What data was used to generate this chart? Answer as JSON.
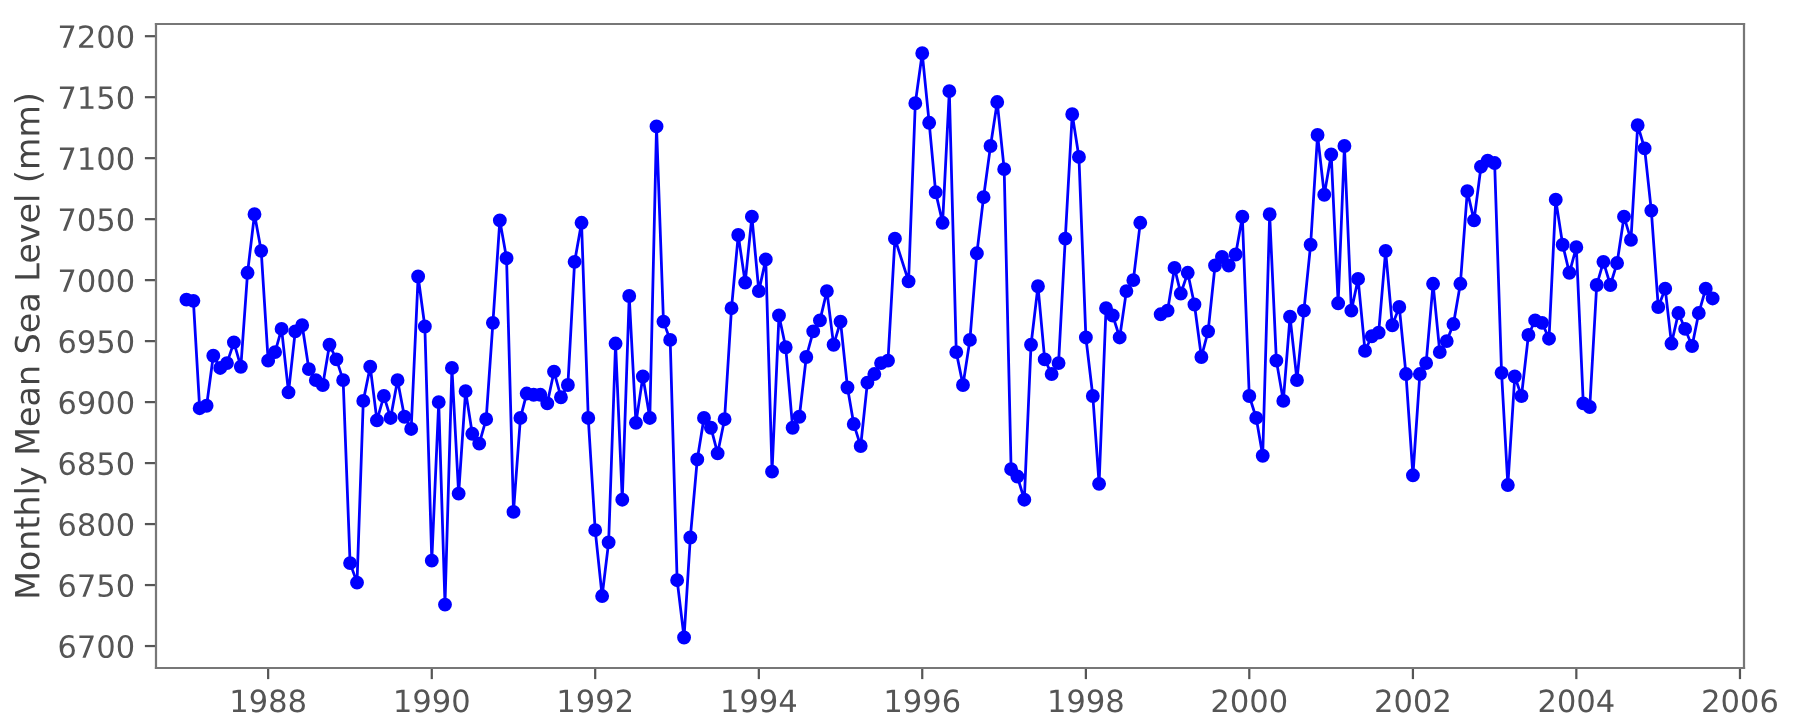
{
  "chart_data": {
    "type": "line",
    "ylabel": "Monthly Mean Sea Level (mm)",
    "xlim": [
      "1986-08-18",
      "2006-01-19"
    ],
    "xticks": [
      "1988",
      "1990",
      "1992",
      "1994",
      "1996",
      "1998",
      "2000",
      "2002",
      "2004",
      "2006"
    ],
    "ylim": [
      6682,
      7210
    ],
    "yticks": [
      6700,
      6750,
      6800,
      6850,
      6900,
      6950,
      7000,
      7050,
      7100,
      7150,
      7200
    ],
    "grid": false,
    "marker": "circle",
    "line_style": "solid",
    "series": [
      {
        "color": "#0000ff",
        "x": [
          "1987-01",
          "1987-02",
          "1987-03",
          "1987-04",
          "1987-05",
          "1987-06",
          "1987-07",
          "1987-08",
          "1987-09",
          "1987-10",
          "1987-11",
          "1987-12",
          "1988-01",
          "1988-02",
          "1988-03",
          "1988-04",
          "1988-05",
          "1988-06",
          "1988-07",
          "1988-08",
          "1988-09",
          "1988-10",
          "1988-11",
          "1988-12",
          "1989-01",
          "1989-02",
          "1989-03",
          "1989-04",
          "1989-05",
          "1989-06",
          "1989-07",
          "1989-08",
          "1989-09",
          "1989-10",
          "1989-11",
          "1989-12",
          "1990-01",
          "1990-02",
          "1990-03",
          "1990-04",
          "1990-05",
          "1990-06",
          "1990-07",
          "1990-08",
          "1990-09",
          "1990-10",
          "1990-11",
          "1990-12",
          "1991-01",
          "1991-02",
          "1991-03",
          "1991-04",
          "1991-05",
          "1991-06",
          "1991-07",
          "1991-08",
          "1991-09",
          "1991-10",
          "1991-11",
          "1991-12",
          "1992-01",
          "1992-02",
          "1992-03",
          "1992-04",
          "1992-05",
          "1992-06",
          "1992-07",
          "1992-08",
          "1992-09",
          "1992-10",
          "1992-11",
          "1992-12",
          "1993-01",
          "1993-02",
          "1993-03",
          "1993-04",
          "1993-05",
          "1993-06",
          "1993-07",
          "1993-08",
          "1993-09",
          "1993-10",
          "1993-11",
          "1993-12",
          "1994-01",
          "1994-02",
          "1994-03",
          "1994-04",
          "1994-05",
          "1994-06",
          "1994-07",
          "1994-08",
          "1994-09",
          "1994-10",
          "1994-11",
          "1994-12",
          "1995-01",
          "1995-02",
          "1995-03",
          "1995-04",
          "1995-05",
          "1995-06",
          "1995-07",
          "1995-08",
          "1995-09",
          "1995-11",
          "1995-12",
          "1996-01",
          "1996-02",
          "1996-03",
          "1996-04",
          "1996-05",
          "1996-06",
          "1996-07",
          "1996-08",
          "1996-09",
          "1996-10",
          "1996-11",
          "1996-12",
          "1997-01",
          "1997-02",
          "1997-03",
          "1997-04",
          "1997-05",
          "1997-06",
          "1997-07",
          "1997-08",
          "1997-09",
          "1997-10",
          "1997-11",
          "1997-12",
          "1998-01",
          "1998-02",
          "1998-03",
          "1998-04",
          "1998-05",
          "1998-06",
          "1998-07",
          "1998-08",
          "1998-09",
          "1998-10",
          "1998-11",
          "1998-12",
          "1999-01",
          "1999-02",
          "1999-03",
          "1999-04",
          "1999-05",
          "1999-06",
          "1999-07",
          "1999-08",
          "1999-09",
          "1999-10",
          "1999-11",
          "1999-12",
          "2000-01",
          "2000-02",
          "2000-03",
          "2000-04",
          "2000-05",
          "2000-06",
          "2000-07",
          "2000-08",
          "2000-09",
          "2000-10",
          "2000-11",
          "2000-12",
          "2001-01",
          "2001-02",
          "2001-03",
          "2001-04",
          "2001-05",
          "2001-06",
          "2001-07",
          "2001-08",
          "2001-09",
          "2001-10",
          "2001-11",
          "2001-12",
          "2002-01",
          "2002-02",
          "2002-03",
          "2002-04",
          "2002-05",
          "2002-06",
          "2002-07",
          "2002-08",
          "2002-09",
          "2002-10",
          "2002-11",
          "2002-12",
          "2003-01",
          "2003-02",
          "2003-03",
          "2003-04",
          "2003-05",
          "2003-06",
          "2003-07",
          "2003-08",
          "2003-09",
          "2003-10",
          "2003-11",
          "2003-12",
          "2004-01",
          "2004-02",
          "2004-03",
          "2004-04",
          "2004-05",
          "2004-06",
          "2004-07",
          "2004-08",
          "2004-09",
          "2004-10",
          "2004-11",
          "2004-12",
          "2005-01",
          "2005-02",
          "2005-03",
          "2005-04",
          "2005-05",
          "2005-06",
          "2005-07",
          "2005-08",
          "2005-09"
        ],
        "values": [
          6984,
          6983,
          6895,
          6897,
          6938,
          6928,
          6932,
          6949,
          6929,
          7006,
          7054,
          7024,
          6934,
          6941,
          6960,
          6908,
          6958,
          6963,
          6927,
          6918,
          6914,
          6947,
          6935,
          6918,
          6768,
          6752,
          6901,
          6929,
          6885,
          6905,
          6887,
          6918,
          6888,
          6878,
          7003,
          6962,
          6770,
          6900,
          6734,
          6928,
          6825,
          6909,
          6874,
          6866,
          6886,
          6965,
          7049,
          7018,
          6810,
          6887,
          6907,
          6906,
          6906,
          6899,
          6925,
          6904,
          6914,
          7015,
          7047,
          6887,
          6795,
          6741,
          6785,
          6948,
          6820,
          6987,
          6883,
          6921,
          6887,
          7126,
          6966,
          6951,
          6754,
          6707,
          6789,
          6853,
          6887,
          6879,
          6858,
          6886,
          6977,
          7037,
          6998,
          7052,
          6991,
          7017,
          6843,
          6971,
          6945,
          6879,
          6888,
          6937,
          6958,
          6967,
          6991,
          6947,
          6966,
          6912,
          6882,
          6864,
          6916,
          6923,
          6932,
          6934,
          7034,
          6999,
          7145,
          7186,
          7129,
          7072,
          7047,
          7155,
          6941,
          6914,
          6951,
          7022,
          7068,
          7110,
          7146,
          7091,
          6845,
          6839,
          6820,
          6947,
          6995,
          6935,
          6923,
          6932,
          7034,
          7136,
          7101,
          6953,
          6905,
          6833,
          6977,
          6971,
          6953,
          6991,
          7000,
          7047,
          null,
          null,
          6972,
          6975,
          7010,
          6989,
          7006,
          6980,
          6937,
          6958,
          7012,
          7019,
          7012,
          7021,
          7052,
          6905,
          6887,
          6856,
          7054,
          6934,
          6901,
          6970,
          6918,
          6975,
          7029,
          7119,
          7070,
          7103,
          6981,
          7110,
          6975,
          7001,
          6942,
          6954,
          6957,
          7024,
          6963,
          6978,
          6923,
          6840,
          6923,
          6932,
          6997,
          6941,
          6950,
          6964,
          6997,
          7073,
          7049,
          7093,
          7098,
          7096,
          6924,
          6832,
          6921,
          6905,
          6955,
          6967,
          6965,
          6952,
          7066,
          7029,
          7006,
          7027,
          6899,
          6896,
          6996,
          7015,
          6996,
          7014,
          7052,
          7033,
          7127,
          7108,
          7057,
          6978,
          6993,
          6948,
          6973,
          6960,
          6946,
          6973,
          6993,
          6985
        ]
      }
    ]
  }
}
